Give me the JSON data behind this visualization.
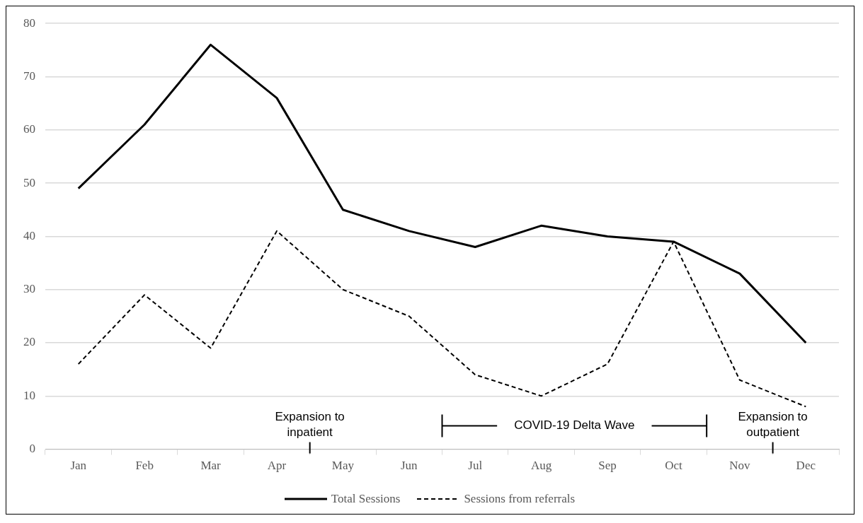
{
  "chart_data": {
    "type": "line",
    "categories": [
      "Jan",
      "Feb",
      "Mar",
      "Apr",
      "May",
      "Jun",
      "Jul",
      "Aug",
      "Sep",
      "Oct",
      "Nov",
      "Dec"
    ],
    "series": [
      {
        "name": "Total Sessions",
        "color": "#000000",
        "values": [
          49,
          61,
          76,
          66,
          45,
          41,
          38,
          42,
          40,
          39,
          33,
          20
        ],
        "line_style": "solid"
      },
      {
        "name": "Sessions from referrals",
        "color": "#000000",
        "values": [
          16,
          29,
          19,
          41,
          30,
          25,
          14,
          10,
          16,
          39,
          13,
          8
        ],
        "line_style": "dashed"
      }
    ],
    "ylim": [
      0,
      80
    ],
    "yticks": [
      0,
      10,
      20,
      30,
      40,
      50,
      60,
      70,
      80
    ],
    "grid": "y",
    "legend": "bottom",
    "marker": "none",
    "annotations": [
      "Expansion to inpatient",
      "COVID-19 Delta Wave",
      "Expansion to outpatient"
    ]
  }
}
